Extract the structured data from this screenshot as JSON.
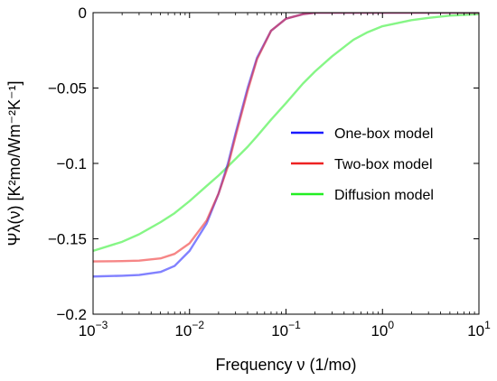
{
  "chart_data": {
    "type": "line",
    "xlabel": "Frequency ν (1/mo)",
    "ylabel": "Ψλ(ν) [K²mo/Wm⁻²K⁻¹]",
    "xscale": "log",
    "xlim": [
      0.001,
      10
    ],
    "ylim": [
      -0.2,
      0
    ],
    "x_ticks": [
      {
        "value": 0.001,
        "base": "10",
        "exp": "−3"
      },
      {
        "value": 0.01,
        "base": "10",
        "exp": "−2"
      },
      {
        "value": 0.1,
        "base": "10",
        "exp": "−1"
      },
      {
        "value": 1,
        "base": "10",
        "exp": "0"
      },
      {
        "value": 10,
        "base": "10",
        "exp": "1"
      }
    ],
    "y_ticks": [
      {
        "value": 0,
        "label": "0"
      },
      {
        "value": -0.05,
        "label": "−0.05"
      },
      {
        "value": -0.1,
        "label": "−0.1"
      },
      {
        "value": -0.15,
        "label": "−0.15"
      },
      {
        "value": -0.2,
        "label": "−0.2"
      }
    ],
    "grid": false,
    "legend_position": "right-middle",
    "x": [
      0.001,
      0.002,
      0.003,
      0.005,
      0.007,
      0.01,
      0.015,
      0.02,
      0.025,
      0.03,
      0.04,
      0.05,
      0.07,
      0.1,
      0.15,
      0.2,
      0.3,
      0.5,
      0.7,
      1,
      2,
      3,
      5,
      7,
      10
    ],
    "series": [
      {
        "name": "One-box model",
        "color": "#1a1aff",
        "values": [
          -0.175,
          -0.1745,
          -0.174,
          -0.172,
          -0.168,
          -0.158,
          -0.14,
          -0.12,
          -0.1,
          -0.08,
          -0.05,
          -0.03,
          -0.012,
          -0.004,
          -0.001,
          0,
          0,
          0,
          0,
          0,
          0,
          0,
          0,
          0,
          0
        ]
      },
      {
        "name": "Two-box model",
        "color": "#ee2222",
        "values": [
          -0.165,
          -0.1648,
          -0.1645,
          -0.163,
          -0.16,
          -0.153,
          -0.138,
          -0.12,
          -0.102,
          -0.082,
          -0.052,
          -0.031,
          -0.012,
          -0.004,
          -0.001,
          0,
          0,
          0,
          0,
          0,
          0,
          0,
          0,
          0,
          0
        ]
      },
      {
        "name": "Diffusion model",
        "color": "#22ee22",
        "values": [
          -0.158,
          -0.152,
          -0.147,
          -0.139,
          -0.133,
          -0.125,
          -0.115,
          -0.108,
          -0.102,
          -0.097,
          -0.089,
          -0.082,
          -0.071,
          -0.06,
          -0.047,
          -0.039,
          -0.029,
          -0.018,
          -0.013,
          -0.009,
          -0.005,
          -0.0035,
          -0.002,
          -0.0015,
          -0.001
        ]
      }
    ]
  }
}
